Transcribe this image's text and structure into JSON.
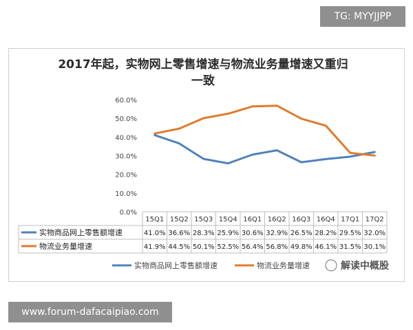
{
  "top_badge": "TG: MYYJJPP",
  "bottom_badge": "www.forum-dafacaipiao.com",
  "watermark": "解读中概股",
  "chart_data": {
    "type": "line",
    "title_line1": "2017年起，实物网上零售增速与物流业务量增速又重归",
    "title_line2": "一致",
    "categories": [
      "15Q1",
      "15Q2",
      "15Q3",
      "15Q4",
      "16Q1",
      "16Q2",
      "16Q3",
      "16Q4",
      "17Q1",
      "17Q2"
    ],
    "y_ticks": [
      "0.0%",
      "10.0%",
      "20.0%",
      "30.0%",
      "40.0%",
      "50.0%",
      "60.0%"
    ],
    "ylim": [
      0,
      60
    ],
    "grid": false,
    "legend_position": "bottom",
    "series": [
      {
        "name": "实物商品网上零售额增速",
        "color": "#4f81bd",
        "values": [
          41.0,
          36.6,
          28.3,
          25.9,
          30.6,
          32.9,
          26.5,
          28.2,
          29.5,
          32.0
        ],
        "labels": [
          "41.0%",
          "36.6%",
          "28.3%",
          "25.9%",
          "30.6%",
          "32.9%",
          "26.5%",
          "28.2%",
          "29.5%",
          "32.0%"
        ]
      },
      {
        "name": "物流业务量增速",
        "color": "#e07b2a",
        "values": [
          41.9,
          44.5,
          50.1,
          52.5,
          56.4,
          56.8,
          49.8,
          46.1,
          31.5,
          30.1
        ],
        "labels": [
          "41.9%",
          "44.5%",
          "50.1%",
          "52.5%",
          "56.4%",
          "56.8%",
          "49.8%",
          "46.1%",
          "31.5%",
          "30.1%"
        ]
      }
    ]
  }
}
